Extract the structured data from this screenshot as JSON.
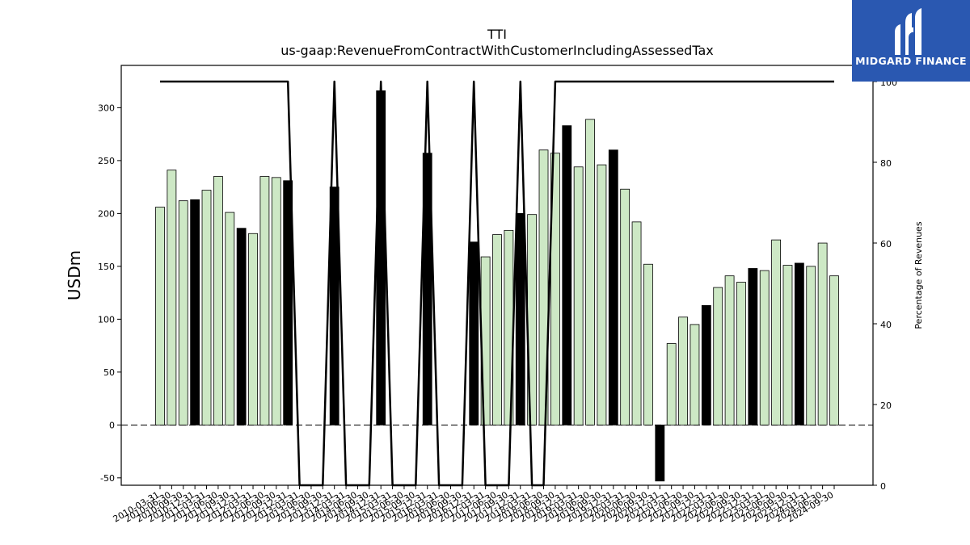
{
  "chart_data": {
    "type": "bar",
    "title": "TTI",
    "subtitle": "us-gaap:RevenueFromContractWithCustomerIncludingAssessedTax",
    "ylabel": "USDm",
    "y2label": "Percentage of Revenues",
    "ylim": [
      -57,
      340
    ],
    "y2lim": [
      0,
      104
    ],
    "yticks": [
      -50,
      0,
      50,
      100,
      150,
      200,
      250,
      300
    ],
    "y2ticks": [
      0,
      20,
      40,
      60,
      80,
      100
    ],
    "categories": [
      "2010-03-31",
      "2010-06-30",
      "2010-09-30",
      "2010-12-31",
      "2011-03-31",
      "2011-06-30",
      "2011-09-30",
      "2011-12-31",
      "2012-03-31",
      "2012-06-30",
      "2012-09-30",
      "2012-12-31",
      "2013-03-31",
      "2013-06-30",
      "2013-09-30",
      "2013-12-31",
      "2014-03-31",
      "2014-06-30",
      "2014-09-30",
      "2014-12-31",
      "2015-03-31",
      "2015-06-30",
      "2015-09-30",
      "2015-12-31",
      "2016-03-31",
      "2016-06-30",
      "2016-09-30",
      "2016-12-31",
      "2017-03-31",
      "2017-06-30",
      "2017-09-30",
      "2017-12-31",
      "2018-03-31",
      "2018-06-30",
      "2018-09-30",
      "2018-12-31",
      "2019-03-31",
      "2019-06-30",
      "2019-09-30",
      "2019-12-31",
      "2020-03-31",
      "2020-06-30",
      "2020-09-30",
      "2020-12-31",
      "2021-03-31",
      "2021-06-30",
      "2021-09-30",
      "2021-12-31",
      "2022-03-31",
      "2022-06-30",
      "2022-09-30",
      "2022-12-31",
      "2023-03-31",
      "2023-06-30",
      "2023-09-30",
      "2023-12-31",
      "2024-03-31",
      "2024-06-30",
      "2024-09-30"
    ],
    "values": [
      206,
      241,
      212,
      213,
      222,
      235,
      201,
      186,
      181,
      235,
      234,
      231,
      0,
      0,
      0,
      225,
      0,
      0,
      0,
      316,
      0,
      0,
      0,
      257,
      0,
      0,
      0,
      173,
      159,
      180,
      184,
      200,
      199,
      260,
      257,
      283,
      244,
      289,
      246,
      260,
      223,
      192,
      152,
      -53,
      77,
      102,
      95,
      113,
      130,
      141,
      135,
      148,
      146,
      175,
      151,
      153,
      150,
      172,
      141
    ],
    "annual": [
      false,
      false,
      false,
      true,
      false,
      false,
      false,
      true,
      false,
      false,
      false,
      true,
      false,
      false,
      false,
      true,
      false,
      false,
      false,
      true,
      false,
      false,
      false,
      true,
      false,
      false,
      false,
      true,
      false,
      false,
      false,
      true,
      false,
      false,
      false,
      true,
      false,
      false,
      false,
      true,
      false,
      false,
      false,
      true,
      false,
      false,
      false,
      true,
      false,
      false,
      false,
      true,
      false,
      false,
      false,
      true,
      false,
      false,
      false
    ],
    "pct": [
      100,
      100,
      100,
      100,
      100,
      100,
      100,
      100,
      100,
      100,
      100,
      100,
      0,
      0,
      0,
      100,
      0,
      0,
      0,
      100,
      0,
      0,
      0,
      100,
      0,
      0,
      0,
      100,
      0,
      0,
      0,
      100,
      0,
      0,
      100,
      100,
      100,
      100,
      100,
      100,
      100,
      100,
      100,
      100,
      100,
      100,
      100,
      100,
      100,
      100,
      100,
      100,
      100,
      100,
      100,
      100,
      100,
      100,
      100
    ],
    "colors": {
      "quarter_bar": "#cde8c5",
      "annual_bar": "#000000",
      "line": "#000000"
    }
  },
  "logo": {
    "text": "MIDGARD FINANCE",
    "bg": "#2a58b1"
  }
}
